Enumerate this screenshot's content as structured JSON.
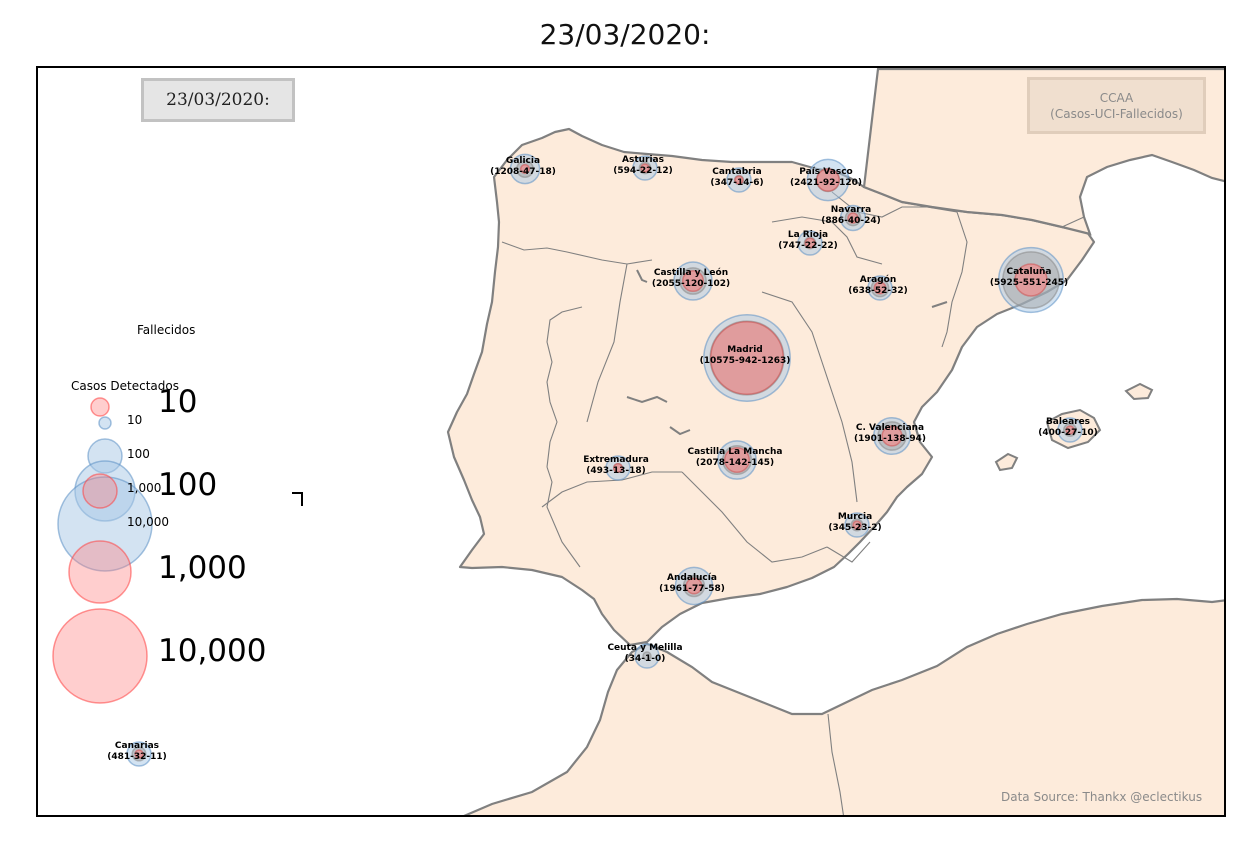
{
  "title": "23/03/2020:",
  "date_box": "23/03/2020:",
  "ccaa_box": {
    "line1": "CCAA",
    "line2": "(Casos-UCI-Fallecidos)"
  },
  "source": "Data Source: Thankx @eclectikus",
  "legend": {
    "fallecidos_title": "Fallecidos",
    "casos_title": "Casos Detectados",
    "casos_labels": [
      "10",
      "100",
      "1,000",
      "10,000"
    ],
    "fallecidos_labels": [
      "10",
      "100",
      "1,000",
      "10,000"
    ]
  },
  "colors": {
    "land": "#fdebdb",
    "coast": "#808080",
    "cases": "#a8c8e6",
    "deaths": "#ff7f7f",
    "uci": "#9e9e9e"
  },
  "regions": [
    {
      "name": "Galicia",
      "stats": "(1208-47-18)",
      "cases": 1208,
      "uci": 47,
      "deaths": 18
    },
    {
      "name": "Asturias",
      "stats": "(594-22-12)",
      "cases": 594,
      "uci": 22,
      "deaths": 12
    },
    {
      "name": "Cantabria",
      "stats": "(347-14-6)",
      "cases": 347,
      "uci": 14,
      "deaths": 6
    },
    {
      "name": "País Vasco",
      "stats": "(2421-92-120)",
      "cases": 2421,
      "uci": 92,
      "deaths": 120
    },
    {
      "name": "Navarra",
      "stats": "(886-40-24)",
      "cases": 886,
      "uci": 40,
      "deaths": 24
    },
    {
      "name": "La Rioja",
      "stats": "(747-22-22)",
      "cases": 747,
      "uci": 22,
      "deaths": 22
    },
    {
      "name": "Castilla y León",
      "stats": "(2055-120-102)",
      "cases": 2055,
      "uci": 120,
      "deaths": 102
    },
    {
      "name": "Aragón",
      "stats": "(638-52-32)",
      "cases": 638,
      "uci": 52,
      "deaths": 32
    },
    {
      "name": "Cataluña",
      "stats": "(5925-551-245)",
      "cases": 5925,
      "uci": 551,
      "deaths": 245
    },
    {
      "name": "Madrid",
      "stats": "(10575-942-1263)",
      "cases": 10575,
      "uci": 942,
      "deaths": 1263
    },
    {
      "name": "Baleares",
      "stats": "(400-27-10)",
      "cases": 400,
      "uci": 27,
      "deaths": 10
    },
    {
      "name": "C. Valenciana",
      "stats": "(1901-138-94)",
      "cases": 1901,
      "uci": 138,
      "deaths": 94
    },
    {
      "name": "Extremadura",
      "stats": "(493-13-18)",
      "cases": 493,
      "uci": 13,
      "deaths": 18
    },
    {
      "name": "Castilla La Mancha",
      "stats": "(2078-142-145)",
      "cases": 2078,
      "uci": 142,
      "deaths": 145
    },
    {
      "name": "Murcia",
      "stats": "(345-23-2)",
      "cases": 345,
      "uci": 23,
      "deaths": 2
    },
    {
      "name": "Andalucía",
      "stats": "(1961-77-58)",
      "cases": 1961,
      "uci": 77,
      "deaths": 58
    },
    {
      "name": "Ceuta y Melilla",
      "stats": "(34-1-0)",
      "cases": 34,
      "uci": 1,
      "deaths": 0
    },
    {
      "name": "Canarias",
      "stats": "(481-32-11)",
      "cases": 481,
      "uci": 32,
      "deaths": 11
    }
  ]
}
